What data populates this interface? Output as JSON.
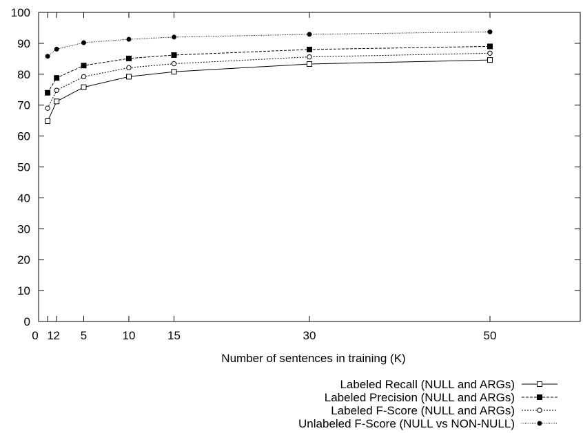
{
  "chart_data": {
    "type": "line",
    "title": "",
    "xlabel": "Number of sentences in training (K)",
    "ylabel": "",
    "xlim": [
      0,
      60
    ],
    "ylim": [
      0,
      100
    ],
    "xticks": [
      {
        "value": 0,
        "label": "0"
      },
      {
        "value": 1,
        "label": "1"
      },
      {
        "value": 2,
        "label": "2"
      },
      {
        "value": 5,
        "label": "5"
      },
      {
        "value": 10,
        "label": "10"
      },
      {
        "value": 15,
        "label": "15"
      },
      {
        "value": 30,
        "label": "30"
      },
      {
        "value": 50,
        "label": "50"
      }
    ],
    "yticks": [
      0,
      10,
      20,
      30,
      40,
      50,
      60,
      70,
      80,
      90,
      100
    ],
    "grid": false,
    "legend": "bottom-right, below plot",
    "x": [
      1,
      2,
      5,
      10,
      15,
      30,
      50
    ],
    "series": [
      {
        "name": "Labeled Recall (NULL and ARGs)",
        "marker": "open-square",
        "dash": "solid",
        "values": [
          64.8,
          71.2,
          75.8,
          79.2,
          80.8,
          83.3,
          84.6
        ]
      },
      {
        "name": "Labeled Precision (NULL and ARGs)",
        "marker": "filled-square",
        "dash": "dashed",
        "values": [
          74.0,
          78.8,
          82.8,
          85.1,
          86.2,
          88.0,
          89.0
        ]
      },
      {
        "name": "Labeled F-Score (NULL and ARGs)",
        "marker": "open-circle",
        "dash": "dotted",
        "values": [
          69.0,
          74.8,
          79.2,
          82.1,
          83.4,
          85.6,
          86.8
        ]
      },
      {
        "name": "Unlabeled F-Score (NULL vs NON-NULL)",
        "marker": "filled-circle",
        "dash": "fine-dotted",
        "values": [
          85.8,
          88.1,
          90.2,
          91.3,
          92.0,
          92.9,
          93.7
        ]
      }
    ]
  }
}
